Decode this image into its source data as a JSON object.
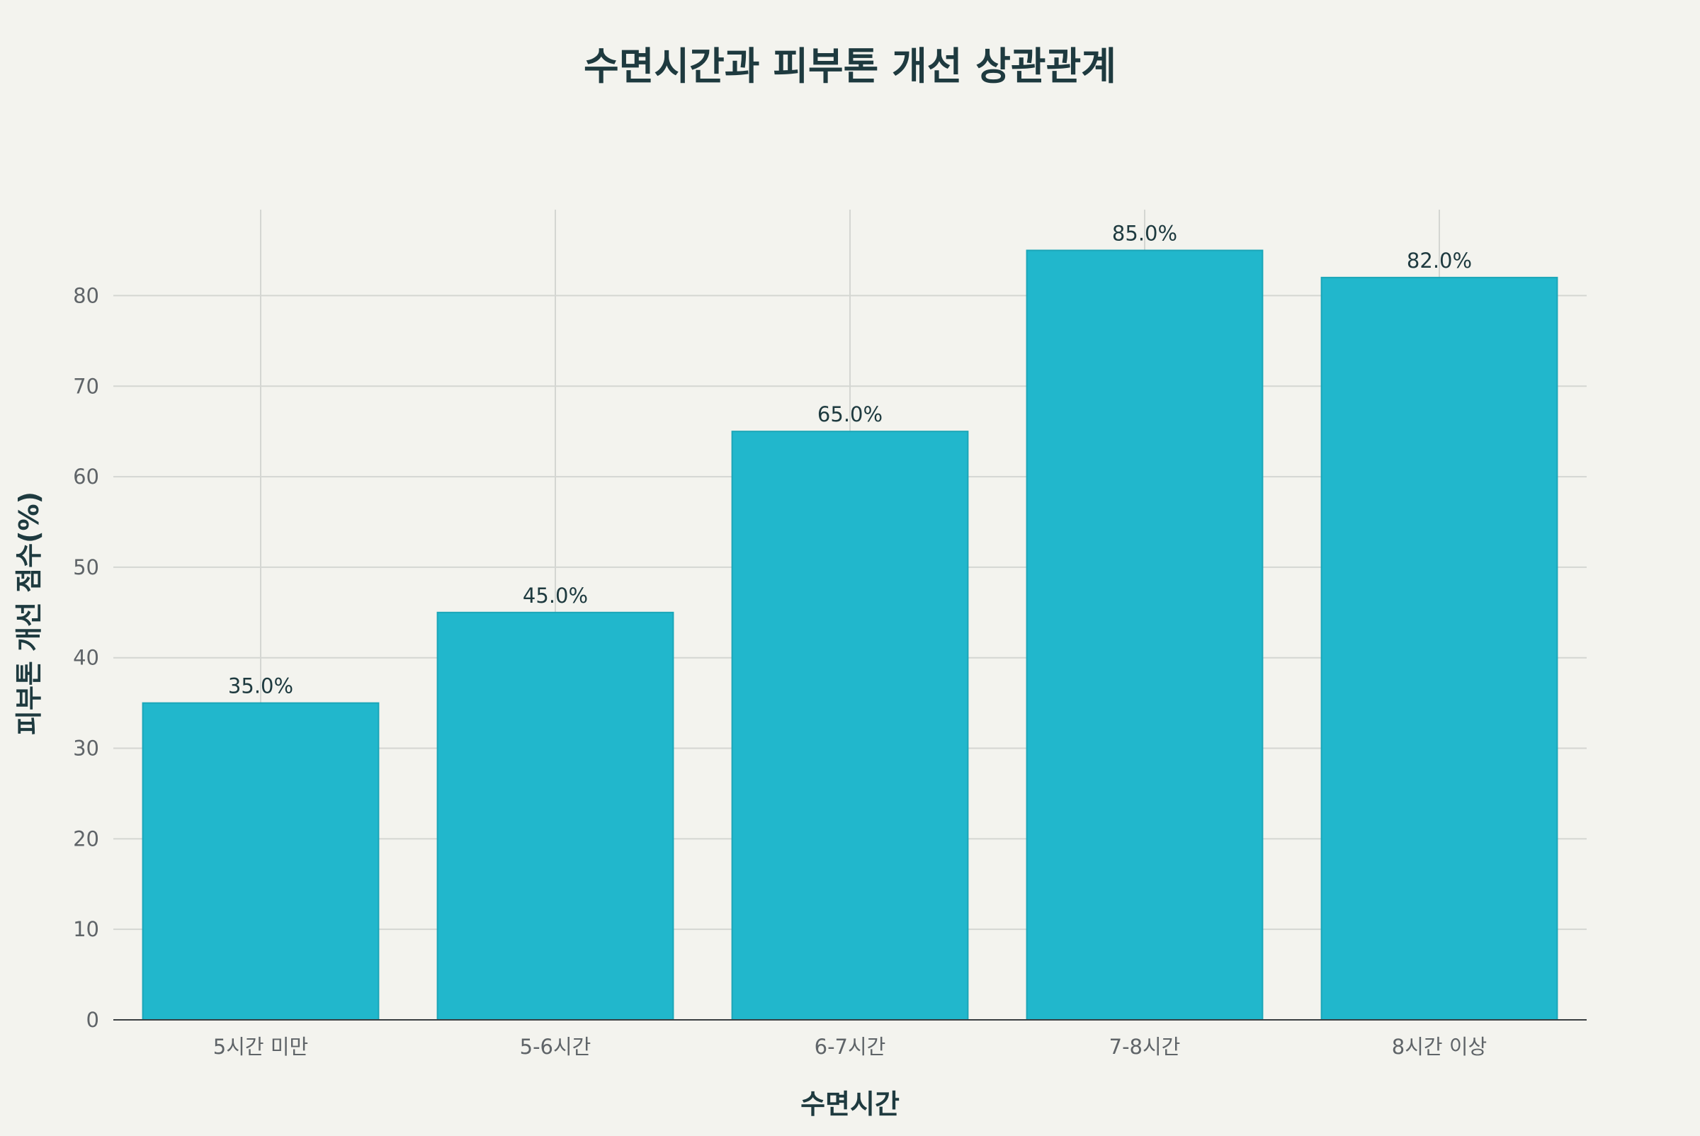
{
  "chart_data": {
    "type": "bar",
    "title": "수면시간과 피부톤 개선 상관관계",
    "xlabel": "수면시간",
    "ylabel": "피부톤 개선 점수(%)",
    "categories": [
      "5시간 미만",
      "5-6시간",
      "6-7시간",
      "7-8시간",
      "8시간 이상"
    ],
    "values": [
      35,
      45,
      65,
      85,
      82
    ],
    "data_labels": [
      "35.0%",
      "45.0%",
      "65.0%",
      "85.0%",
      "82.0%"
    ],
    "y_ticks": [
      0,
      10,
      20,
      30,
      40,
      50,
      60,
      70,
      80
    ],
    "ylim": [
      0,
      89.5
    ],
    "grid": true,
    "bar_color": "#21b7cc"
  }
}
